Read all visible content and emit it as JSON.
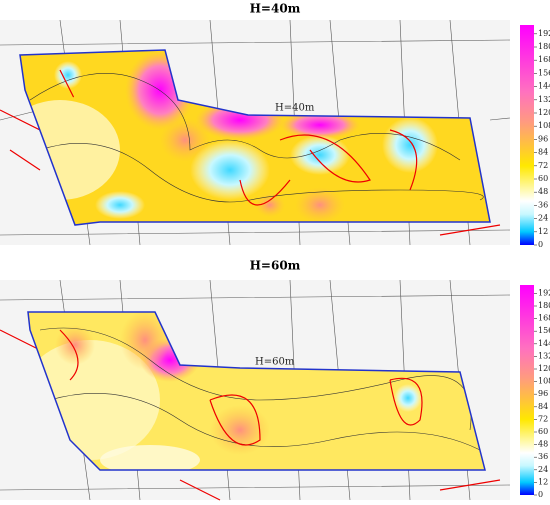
{
  "maps": [
    {
      "title": "H=40m",
      "label": "H=40m",
      "colorbar": {
        "range": [
          0,
          200
        ],
        "ticks": [
          0,
          12,
          24,
          36,
          48,
          60,
          72,
          84,
          96,
          108,
          120,
          132,
          144,
          156,
          168,
          180,
          192
        ]
      }
    },
    {
      "title": "H=60m",
      "label": "H=60m",
      "colorbar": {
        "range": [
          0,
          200
        ],
        "ticks": [
          0,
          12,
          24,
          36,
          48,
          60,
          72,
          84,
          96,
          108,
          120,
          132,
          144,
          156,
          168,
          180,
          192
        ]
      }
    }
  ]
}
